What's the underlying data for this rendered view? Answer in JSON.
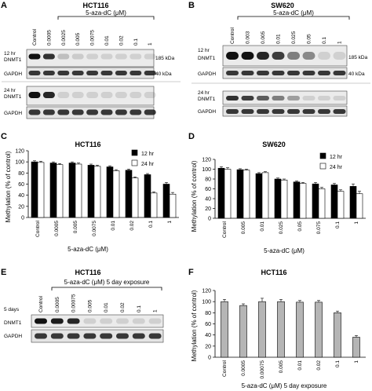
{
  "panels": {
    "A": {
      "letter": "A",
      "title": "HCT116",
      "treatment": "5-aza-dC (μM)",
      "lanes": [
        "Control",
        "0.0005",
        "0.0025",
        "0.005",
        "0.0075",
        "0.01",
        "0.02",
        "0.1",
        "1"
      ],
      "times": [
        "12 hr",
        "24 hr"
      ],
      "rows": [
        "DNMT1",
        "GAPDH"
      ],
      "sizes": [
        "185 kDa",
        "40 kDa"
      ],
      "dnmt1_12hr": [
        1.0,
        0.85,
        0.2,
        0.15,
        0.1,
        0.08,
        0.06,
        0.05,
        0.05
      ],
      "dnmt1_24hr": [
        1.0,
        0.9,
        0.05,
        0.05,
        0.05,
        0.05,
        0.05,
        0.05,
        0.05
      ]
    },
    "B": {
      "letter": "B",
      "title": "SW620",
      "treatment": "5-aza-dC (μM)",
      "lanes": [
        "Control",
        "0.003",
        "0.005",
        "0.01",
        "0.025",
        "0.05",
        "0.1",
        "1"
      ],
      "times": [
        "12 hr",
        "24 hr"
      ],
      "rows": [
        "DNMT1",
        "GAPDH"
      ],
      "sizes": [
        "185 kDa",
        "40 kDa"
      ],
      "dnmt1_12hr": [
        1.0,
        1.0,
        0.9,
        0.8,
        0.5,
        0.45,
        0.05,
        0.05
      ],
      "dnmt1_24hr": [
        0.85,
        0.8,
        0.65,
        0.5,
        0.35,
        0.05,
        0.05,
        0.05
      ]
    },
    "E": {
      "letter": "E",
      "title": "HCT116",
      "treatment": "5-aza-dC (μM) 5 day exposure",
      "lanes": [
        "Control",
        "0.0005",
        "0.00075",
        "0.005",
        "0.01",
        "0.02",
        "0.1",
        "1"
      ],
      "times": [
        "5 days"
      ],
      "rows": [
        "DNMT1",
        "GAPDH"
      ],
      "dnmt1_5day": [
        1.0,
        0.95,
        0.9,
        0.05,
        0.05,
        0.05,
        0.05,
        0.05
      ]
    }
  },
  "chart_data": [
    {
      "panel": "C",
      "type": "bar",
      "title": "HCT116",
      "xlabel": "5-aza-dC (μM)",
      "ylabel": "Methylation (% of control)",
      "categories": [
        "Control",
        "0.0005",
        "0.005",
        "0.0075",
        "0.01",
        "0.02",
        "0.1",
        "1"
      ],
      "series": [
        {
          "name": "12 hr",
          "color": "#000000",
          "values": [
            100,
            98,
            98,
            94,
            91,
            85,
            77,
            60
          ],
          "errors": [
            2,
            2,
            2,
            2,
            2,
            2,
            2,
            3
          ]
        },
        {
          "name": "24 hr",
          "color": "#ffffff",
          "values": [
            99,
            95,
            96,
            92,
            84,
            71,
            44,
            42
          ],
          "errors": [
            2,
            2,
            2,
            2,
            2,
            2,
            2,
            3
          ]
        }
      ],
      "ylim": [
        0,
        120
      ],
      "yticks": [
        "0",
        "20",
        "40",
        "60",
        "80",
        "100",
        "120"
      ],
      "legend": "right"
    },
    {
      "panel": "D",
      "type": "bar",
      "title": "SW620",
      "xlabel": "5-aza-dC (μM)",
      "ylabel": "Methylation (% of control)",
      "categories": [
        "Control",
        "0.005",
        "0.01",
        "0.025",
        "0.05",
        "0.075",
        "0.1",
        "1"
      ],
      "series": [
        {
          "name": "12 hr",
          "color": "#000000",
          "values": [
            102,
            99,
            91,
            80,
            74,
            70,
            68,
            65
          ],
          "errors": [
            3,
            2,
            2,
            2,
            2,
            3,
            3,
            5
          ]
        },
        {
          "name": "24 hr",
          "color": "#ffffff",
          "values": [
            100,
            98,
            93,
            78,
            71,
            60,
            55,
            50
          ],
          "errors": [
            3,
            2,
            2,
            2,
            2,
            3,
            3,
            5
          ]
        }
      ],
      "ylim": [
        0,
        120
      ],
      "yticks": [
        "0",
        "20",
        "40",
        "60",
        "80",
        "100",
        "120"
      ],
      "legend": "right"
    },
    {
      "panel": "F",
      "type": "bar",
      "title": "HCT116",
      "xlabel": "5-aza-dC (μM) 5 day exposure",
      "ylabel": "Methylation (% of control)",
      "categories": [
        "Control",
        "0.0005",
        "0.00075",
        "0.005",
        "0.01",
        "0.02",
        "0.1",
        "1"
      ],
      "series": [
        {
          "name": "",
          "color": "#b5b5b5",
          "values": [
            100,
            93,
            100,
            100,
            99,
            99,
            80,
            36
          ],
          "errors": [
            4,
            3,
            6,
            4,
            3,
            3,
            3,
            3
          ]
        }
      ],
      "ylim": [
        0,
        120
      ],
      "yticks": [
        "0",
        "20",
        "40",
        "60",
        "80",
        "100",
        "120"
      ]
    }
  ]
}
